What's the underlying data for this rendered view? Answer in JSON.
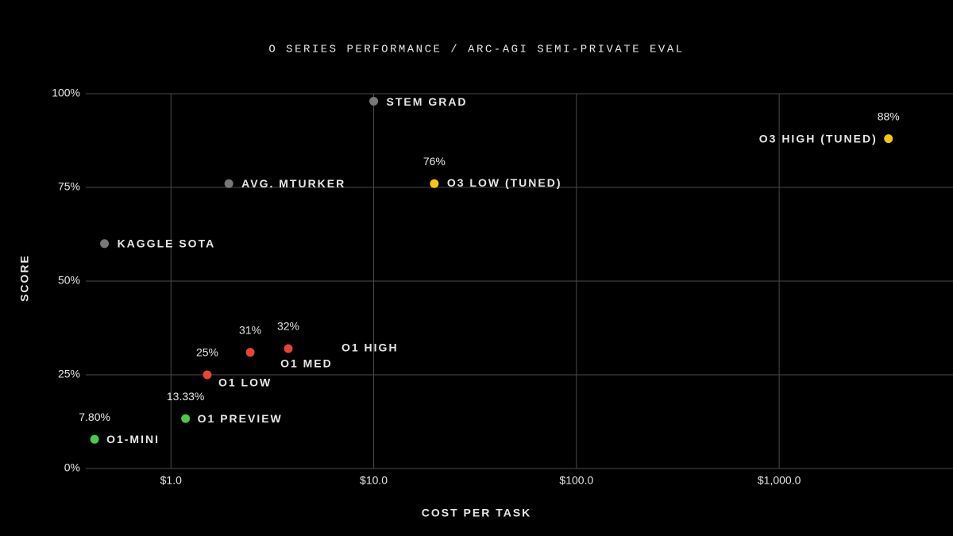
{
  "chart_data": {
    "type": "scatter",
    "title": "O SERIES PERFORMANCE / ARC-AGI SEMI-PRIVATE EVAL",
    "x_label": "COST PER TASK",
    "y_label": "SCORE",
    "x_scale": "log",
    "grid": true,
    "xlim": [
      0.38,
      7200
    ],
    "ylim": [
      0,
      100
    ],
    "xticks": [
      {
        "value": 1,
        "label": "$1.0"
      },
      {
        "value": 10,
        "label": "$10.0"
      },
      {
        "value": 100,
        "label": "$100.0"
      },
      {
        "value": 1000,
        "label": "$1,000.0"
      }
    ],
    "yticks": [
      {
        "value": 0,
        "label": "0%"
      },
      {
        "value": 25,
        "label": "25%"
      },
      {
        "value": 50,
        "label": "50%"
      },
      {
        "value": 75,
        "label": "75%"
      },
      {
        "value": 100,
        "label": "100%"
      }
    ],
    "points": [
      {
        "name": "O1-MINI",
        "x": 0.42,
        "y": 7.8,
        "value_label": "7.80%",
        "color": "#4cc84a"
      },
      {
        "name": "O1 PREVIEW",
        "x": 1.18,
        "y": 13.33,
        "value_label": "13.33%",
        "color": "#4cc84a"
      },
      {
        "name": "O1 LOW",
        "x": 1.51,
        "y": 25,
        "value_label": "25%",
        "color": "#e8443a"
      },
      {
        "name": "O1 MED",
        "x": 2.46,
        "y": 31,
        "value_label": "31%",
        "color": "#e8443a"
      },
      {
        "name": "O1 HIGH",
        "x": 3.79,
        "y": 32,
        "value_label": "32%",
        "color": "#e8443a"
      },
      {
        "name": "O3 LOW (TUNED)",
        "x": 19.9,
        "y": 76,
        "value_label": "76%",
        "color": "#f5c518"
      },
      {
        "name": "O3 HIGH (TUNED)",
        "x": 3460,
        "y": 88,
        "value_label": "88%",
        "color": "#f5c518"
      },
      {
        "name": "KAGGLE SOTA",
        "x": 0.47,
        "y": 60,
        "color": "#777777"
      },
      {
        "name": "AVG. MTURKER",
        "x": 1.93,
        "y": 76,
        "color": "#777777"
      },
      {
        "name": "STEM GRAD",
        "x": 10,
        "y": 98,
        "color": "#777777"
      }
    ]
  }
}
